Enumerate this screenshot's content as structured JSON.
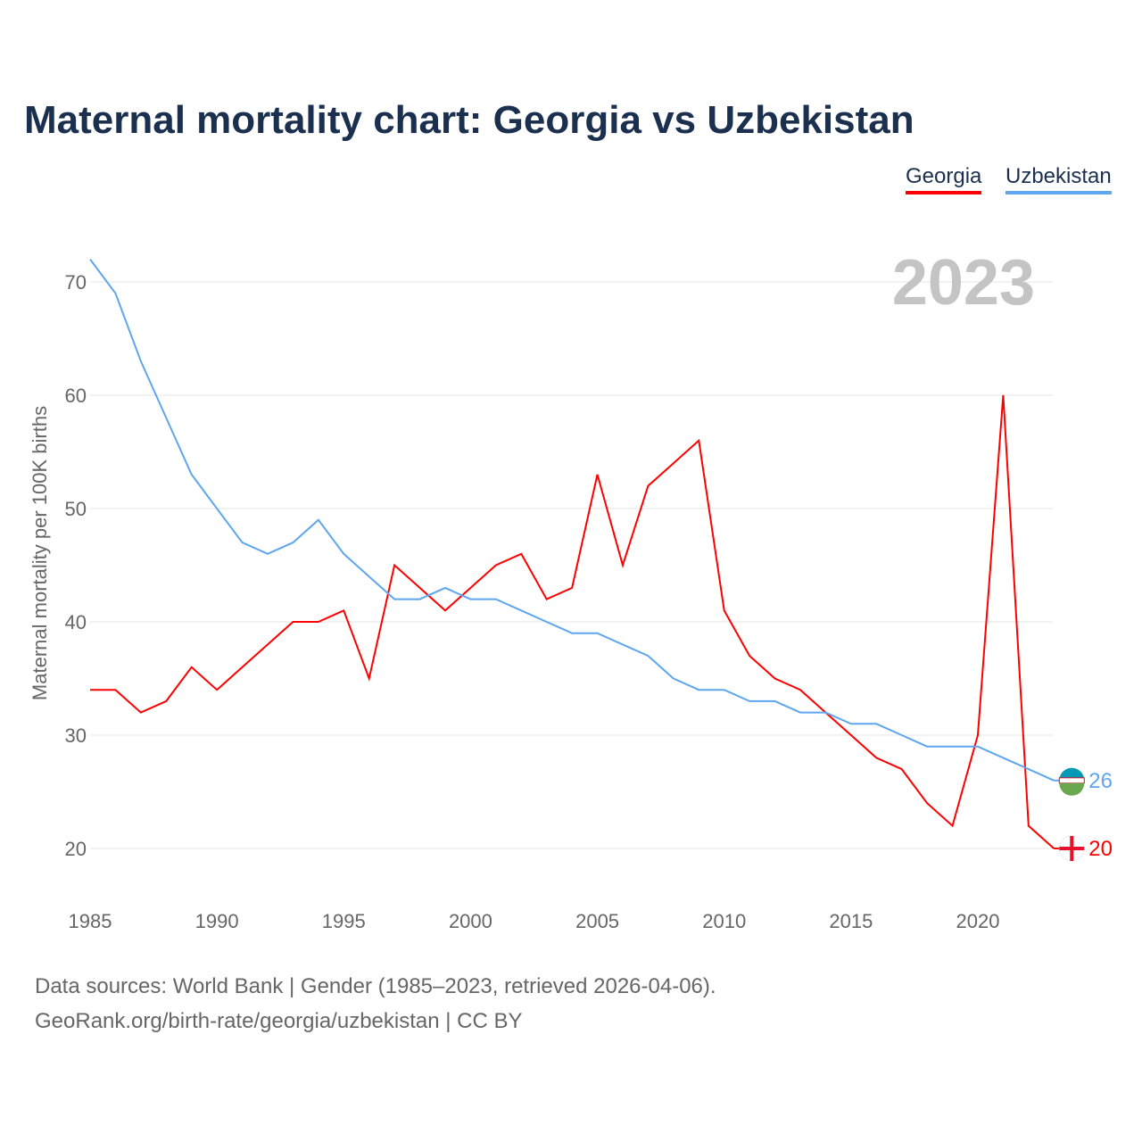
{
  "chart_data": {
    "type": "line",
    "title": "Maternal mortality chart: Georgia vs Uzbekistan",
    "ylabel": "Maternal mortality per 100K births",
    "xlabel": "",
    "year_label": "2023",
    "xlim": [
      1985,
      2023
    ],
    "ylim": [
      20,
      70
    ],
    "x_ticks": [
      1985,
      1990,
      1995,
      2000,
      2005,
      2010,
      2015,
      2020
    ],
    "y_ticks": [
      20,
      30,
      40,
      50,
      60,
      70
    ],
    "grid": true,
    "legend_position": "top-right",
    "x": [
      1985,
      1986,
      1987,
      1988,
      1989,
      1990,
      1991,
      1992,
      1993,
      1994,
      1995,
      1996,
      1997,
      1998,
      1999,
      2000,
      2001,
      2002,
      2003,
      2004,
      2005,
      2006,
      2007,
      2008,
      2009,
      2010,
      2011,
      2012,
      2013,
      2014,
      2015,
      2016,
      2017,
      2018,
      2019,
      2020,
      2021,
      2022,
      2023
    ],
    "series": [
      {
        "name": "Georgia",
        "color": "#ff0000",
        "end_label": "20",
        "values": [
          34,
          34,
          32,
          33,
          36,
          34,
          36,
          38,
          40,
          40,
          41,
          35,
          45,
          43,
          41,
          43,
          45,
          46,
          42,
          43,
          53,
          45,
          52,
          54,
          56,
          41,
          37,
          35,
          34,
          32,
          30,
          28,
          27,
          24,
          22,
          30,
          60,
          22,
          20
        ]
      },
      {
        "name": "Uzbekistan",
        "color": "#5ea6ee",
        "end_label": "26",
        "values": [
          72,
          69,
          63,
          58,
          53,
          50,
          47,
          46,
          47,
          49,
          46,
          44,
          42,
          42,
          43,
          42,
          42,
          41,
          40,
          39,
          39,
          38,
          37,
          35,
          34,
          34,
          33,
          33,
          32,
          32,
          31,
          31,
          30,
          29,
          29,
          29,
          28,
          27,
          26
        ]
      }
    ]
  },
  "footer": {
    "line1": "Data sources: World Bank | Gender (1985–2023, retrieved 2026-04-06).",
    "line2": "GeoRank.org/birth-rate/georgia/uzbekistan | CC BY"
  }
}
